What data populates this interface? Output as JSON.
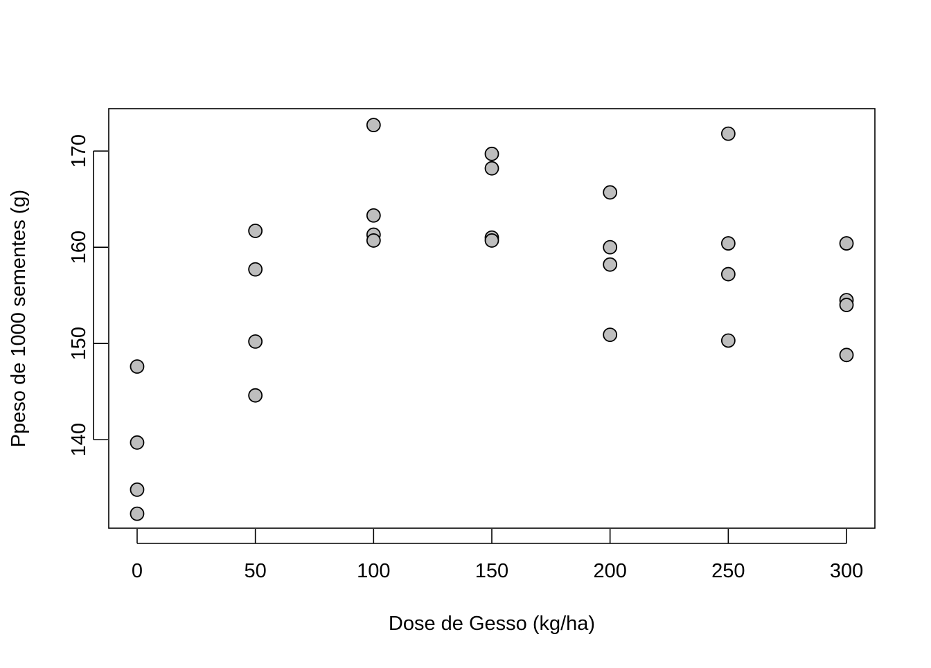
{
  "chart_data": {
    "type": "scatter",
    "title": "",
    "xlabel": "Dose de Gesso (kg/ha)",
    "ylabel": "Ppeso de 1000 sementes (g)",
    "xlim": [
      -12,
      312
    ],
    "ylim": [
      130.8,
      174.4
    ],
    "x_ticks": [
      0,
      50,
      100,
      150,
      200,
      250,
      300
    ],
    "y_ticks": [
      140,
      150,
      160,
      170
    ],
    "grid": false,
    "legend": "none",
    "marker_fill": "#bebebe",
    "marker_edge": "#000000",
    "series": [
      {
        "x": [
          0,
          0,
          0,
          0,
          50,
          50,
          50,
          50,
          100,
          100,
          100,
          100,
          150,
          150,
          150,
          150,
          200,
          200,
          200,
          200,
          250,
          250,
          250,
          250,
          300,
          300,
          300,
          300
        ],
        "y": [
          147.6,
          139.7,
          134.8,
          132.3,
          161.7,
          157.7,
          150.2,
          144.6,
          172.7,
          163.3,
          161.3,
          160.7,
          169.7,
          168.2,
          161.0,
          160.7,
          165.7,
          160.0,
          158.2,
          150.9,
          171.8,
          160.4,
          157.2,
          150.3,
          160.4,
          154.5,
          154.0,
          148.8
        ]
      }
    ]
  }
}
